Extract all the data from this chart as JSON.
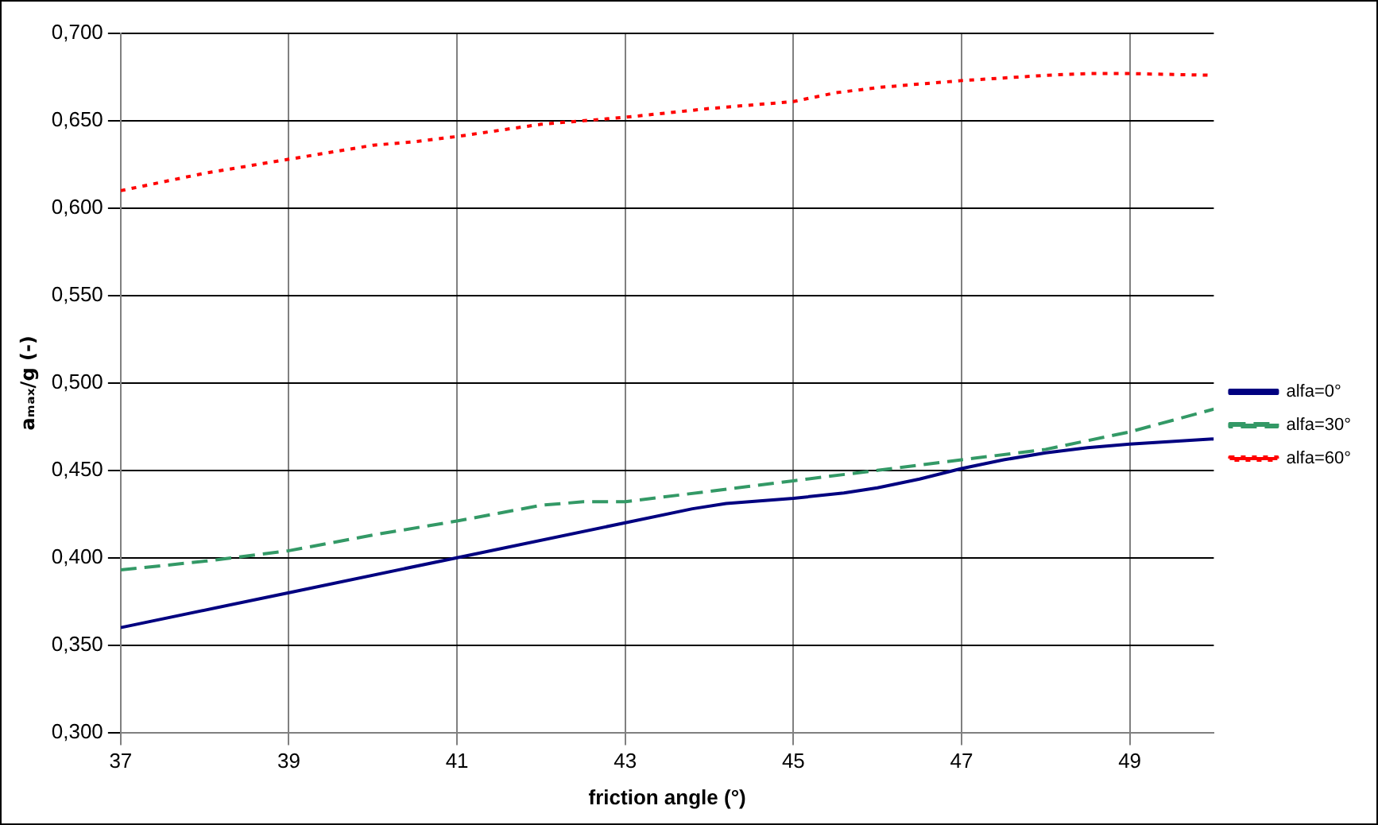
{
  "chart_data": {
    "type": "line",
    "xlabel": "friction angle (°)",
    "ylabel": "aₘₐₓ/g (-)",
    "xlim": [
      37,
      50
    ],
    "xticks": [
      37,
      39,
      41,
      43,
      45,
      47,
      49
    ],
    "ylim": [
      0.3,
      0.7
    ],
    "yticks": [
      {
        "value": 0.3,
        "label": "0,300"
      },
      {
        "value": 0.35,
        "label": "0,350"
      },
      {
        "value": 0.4,
        "label": "0,400"
      },
      {
        "value": 0.45,
        "label": "0,450"
      },
      {
        "value": 0.5,
        "label": "0,500"
      },
      {
        "value": 0.55,
        "label": "0,550"
      },
      {
        "value": 0.6,
        "label": "0,600"
      },
      {
        "value": 0.65,
        "label": "0,650"
      },
      {
        "value": 0.7,
        "label": "0,700"
      }
    ],
    "grid": true,
    "legend": "right",
    "marker": "none",
    "series": [
      {
        "name": "alfa=0°",
        "color": "#000080",
        "line_style": "solid",
        "x": [
          37,
          39,
          41,
          43,
          43.8,
          44.2,
          45,
          45.6,
          46,
          46.5,
          47,
          47.5,
          48,
          48.5,
          49,
          50
        ],
        "values": [
          0.36,
          0.38,
          0.4,
          0.42,
          0.428,
          0.431,
          0.434,
          0.437,
          0.44,
          0.445,
          0.451,
          0.456,
          0.46,
          0.463,
          0.465,
          0.468
        ]
      },
      {
        "name": "alfa=30°",
        "color": "#339966",
        "line_style": "dashed",
        "x": [
          37,
          38,
          39,
          40,
          41,
          42,
          42.5,
          43,
          44,
          45,
          46,
          47,
          48,
          49,
          50
        ],
        "values": [
          0.393,
          0.398,
          0.404,
          0.413,
          0.421,
          0.43,
          0.432,
          0.432,
          0.438,
          0.444,
          0.45,
          0.456,
          0.462,
          0.472,
          0.485
        ]
      },
      {
        "name": "alfa=60°",
        "color": "#ff0000",
        "line_style": "dotted",
        "x": [
          37,
          38,
          39,
          40,
          40.5,
          41,
          42,
          43,
          44,
          45,
          45.5,
          46,
          47,
          48,
          48.5,
          49,
          50
        ],
        "values": [
          0.61,
          0.62,
          0.628,
          0.636,
          0.638,
          0.641,
          0.648,
          0.652,
          0.657,
          0.661,
          0.666,
          0.669,
          0.673,
          0.676,
          0.677,
          0.677,
          0.676
        ]
      }
    ]
  }
}
